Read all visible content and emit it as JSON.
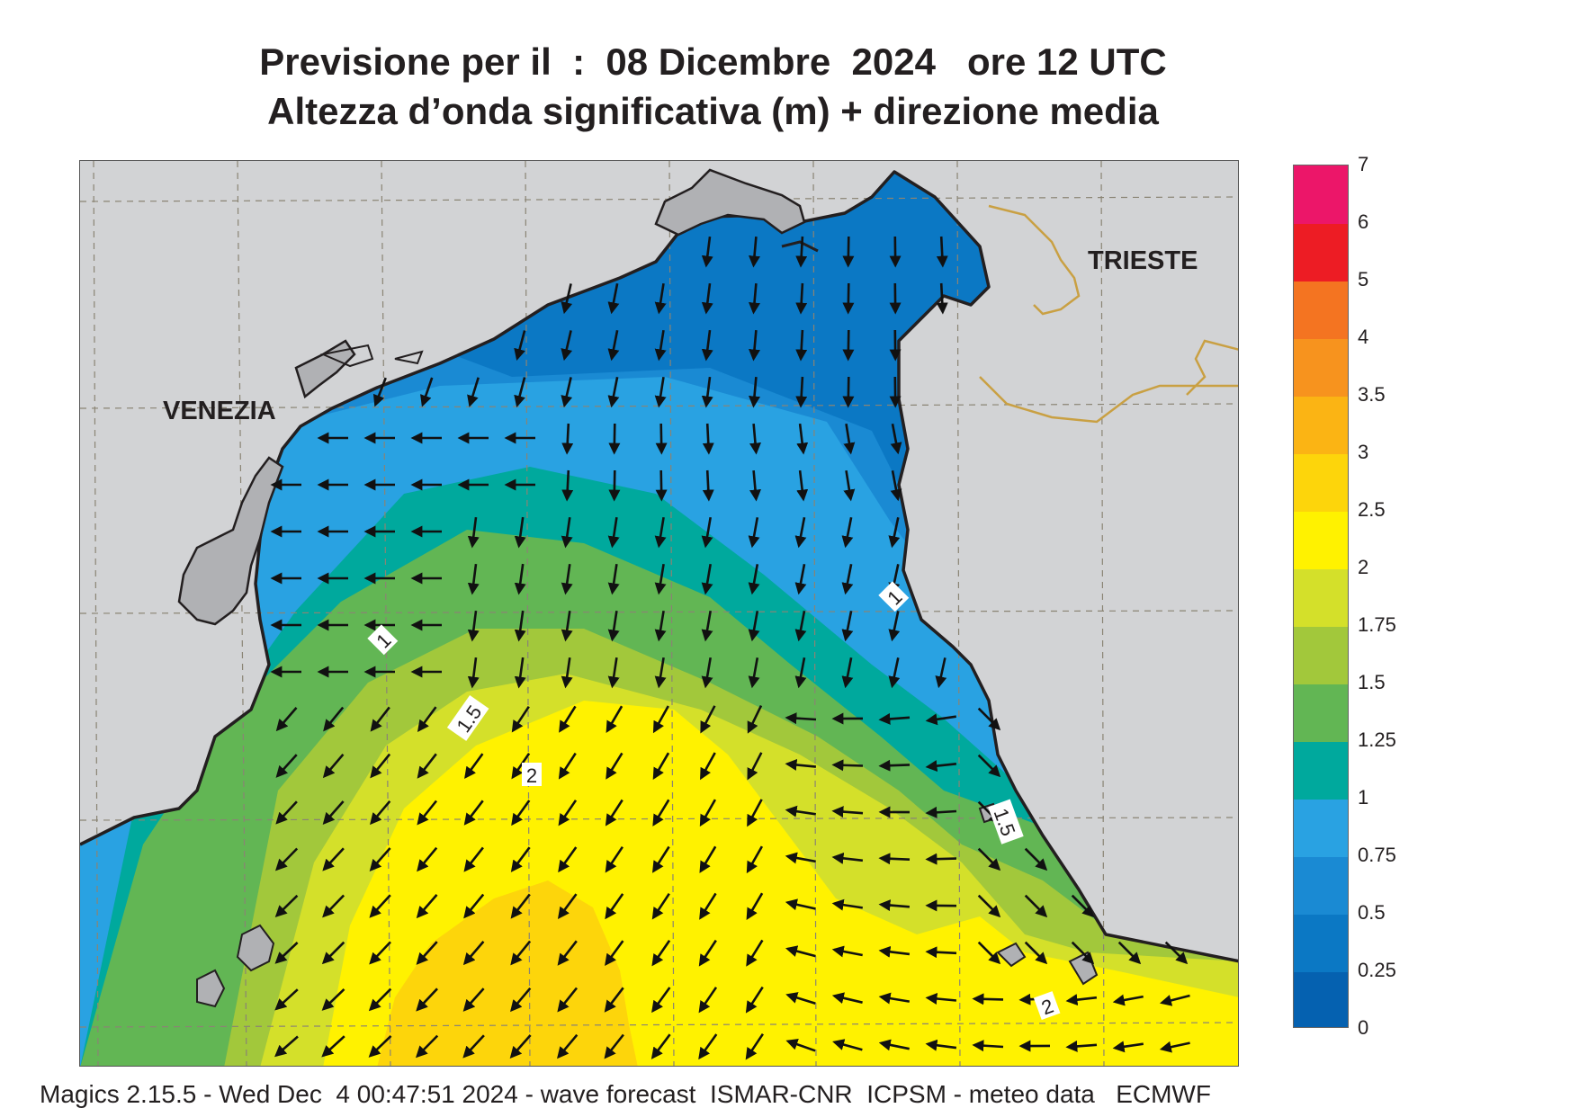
{
  "title": {
    "line1": "Previsione per il  :  08 Dicembre  2024   ore 12 UTC",
    "line2": "Altezza d’onda significativa (m) + direzione media"
  },
  "places": {
    "venezia": "VENEZIA",
    "trieste": "TRIESTE"
  },
  "contour_labels": [
    "1",
    "1",
    "1.5",
    "1.5",
    "2",
    "2"
  ],
  "legend": {
    "ticks": [
      "0",
      "0.25",
      "0.5",
      "0.75",
      "1",
      "1.25",
      "1.5",
      "1.75",
      "2",
      "2.5",
      "3",
      "3.5",
      "4",
      "5",
      "6",
      "7"
    ],
    "colors": [
      "#0561b0",
      "#0b78c4",
      "#1a8ad3",
      "#29a2e2",
      "#00a99d",
      "#62b654",
      "#a2c83b",
      "#d4e02a",
      "#fff200",
      "#fdd50b",
      "#fbb414",
      "#f7931e",
      "#f47421",
      "#ed1c24",
      "#ec1669"
    ]
  },
  "footer": "Magics 2.15.5 - Wed Dec  4 00:47:51 2024 - wave forecast  ISMAR-CNR  ICPSM - meteo data   ECMWF"
}
